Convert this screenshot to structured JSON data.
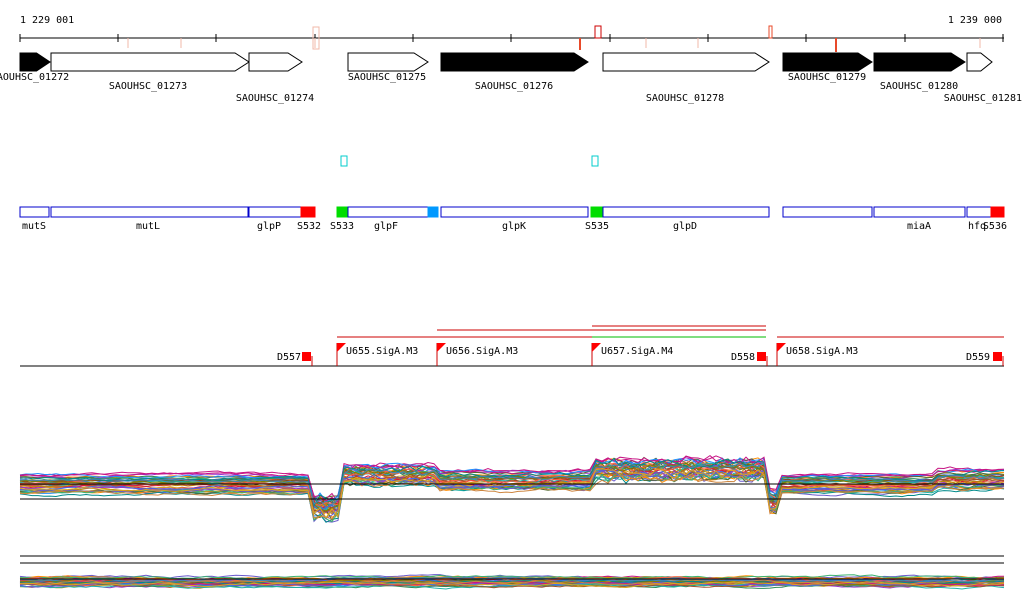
{
  "ruler": {
    "start_label": "1 229 001",
    "end_label": "1 239 000"
  },
  "colors": {
    "locus_tag_fill": "#000000",
    "locus_tag_outline": "#000000",
    "gene_outline": "#0000cc",
    "segment_red": "#ff0000",
    "segment_green": "#00dd00",
    "segment_blue": "#0099ff",
    "feature_cyan": "#00cccc",
    "transcript_red": "#cc0000",
    "transcript_green": "#00bb00",
    "tick_red": "#e84a2a",
    "tick_pink": "#f2b8a8"
  },
  "locus_tags": [
    {
      "label": "SAOUHSC_01272",
      "filled": true
    },
    {
      "label": "SAOUHSC_01273",
      "filled": false
    },
    {
      "label": "SAOUHSC_01274",
      "filled": false
    },
    {
      "label": "SAOUHSC_01275",
      "filled": false
    },
    {
      "label": "SAOUHSC_01276",
      "filled": true
    },
    {
      "label": "SAOUHSC_01278",
      "filled": false
    },
    {
      "label": "SAOUHSC_01279",
      "filled": true
    },
    {
      "label": "SAOUHSC_01280",
      "filled": true
    },
    {
      "label": "SAOUHSC_01281",
      "filled": false
    }
  ],
  "genes": [
    {
      "label": "mutS",
      "kind": "gene"
    },
    {
      "label": "mutL",
      "kind": "gene"
    },
    {
      "label": "glpP",
      "kind": "gene"
    },
    {
      "label": "S532",
      "kind": "segment",
      "color": "#ff0000"
    },
    {
      "label": "S533",
      "kind": "segment",
      "color": "#00dd00"
    },
    {
      "label": "glpF",
      "kind": "gene"
    },
    {
      "label": "glpK",
      "kind": "gene"
    },
    {
      "label": "S535",
      "kind": "segment",
      "color": "#00dd00"
    },
    {
      "label": "glpD",
      "kind": "gene"
    },
    {
      "label": "miaA",
      "kind": "gene"
    },
    {
      "label": "hfq",
      "kind": "gene"
    },
    {
      "label": "S536",
      "kind": "segment",
      "color": "#ff0000"
    }
  ],
  "transcription_units": [
    {
      "label": "D557",
      "kind": "downshift"
    },
    {
      "label": "U655.SigA.M3",
      "kind": "upshift"
    },
    {
      "label": "U656.SigA.M3",
      "kind": "upshift"
    },
    {
      "label": "U657.SigA.M4",
      "kind": "upshift"
    },
    {
      "label": "D558",
      "kind": "downshift"
    },
    {
      "label": "U658.SigA.M3",
      "kind": "upshift"
    },
    {
      "label": "D559",
      "kind": "downshift"
    }
  ],
  "expression_tracks": {
    "series_count": 40,
    "track_count": 2
  }
}
